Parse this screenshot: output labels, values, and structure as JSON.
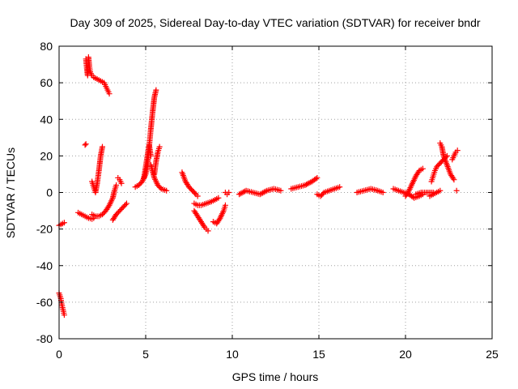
{
  "chart_data": {
    "type": "scatter",
    "title": "Day 309 of 2025, Sidereal Day-to-day VTEC variation (SDTVAR) for receiver bndr",
    "xlabel": "GPS time / hours",
    "ylabel": "SDTVAR / TECUs",
    "xlim": [
      0,
      25
    ],
    "ylim": [
      -80,
      80
    ],
    "x_ticks": [
      0,
      5,
      10,
      15,
      20,
      25
    ],
    "y_ticks": [
      -80,
      -60,
      -40,
      -20,
      0,
      20,
      40,
      60,
      80
    ],
    "grid": true,
    "marker": "+",
    "color": "#ff0000",
    "series": [
      {
        "x": [
          0.0,
          0.1,
          0.2,
          0.3
        ],
        "y": [
          -18.0,
          -17.5,
          -17.0,
          -16.5
        ]
      },
      {
        "x": [
          0.0,
          0.1,
          0.15,
          0.2,
          0.25,
          0.3
        ],
        "y": [
          -55.0,
          -58.0,
          -61.0,
          -63.0,
          -65.0,
          -67.0
        ]
      },
      {
        "x": [
          1.1,
          1.3,
          1.5,
          1.7,
          1.9,
          2.0
        ],
        "y": [
          -11.0,
          -12.0,
          -13.0,
          -14.0,
          -14.5,
          -14.0
        ]
      },
      {
        "x": [
          1.5,
          1.55
        ],
        "y": [
          26.0,
          26.5
        ]
      },
      {
        "x": [
          1.55,
          1.6,
          1.65,
          1.7,
          1.75,
          1.8,
          1.9,
          2.0,
          2.2,
          2.4,
          2.6,
          2.7,
          2.8,
          2.9
        ],
        "y": [
          73.0,
          68.0,
          64.0,
          74.0,
          69.0,
          66.0,
          64.0,
          63.0,
          62.0,
          61.0,
          60.0,
          58.0,
          56.0,
          54.0
        ]
      },
      {
        "x": [
          1.9,
          2.0,
          2.1,
          2.2,
          2.3,
          2.4,
          2.5
        ],
        "y": [
          6.0,
          3.0,
          0.0,
          5.0,
          12.0,
          20.0,
          25.0
        ]
      },
      {
        "x": [
          1.9,
          2.1,
          2.3,
          2.5,
          2.7,
          2.9,
          3.1,
          3.2,
          3.3
        ],
        "y": [
          -12.0,
          -13.0,
          -13.0,
          -12.0,
          -10.0,
          -7.0,
          -3.0,
          1.0,
          4.0
        ]
      },
      {
        "x": [
          3.1,
          3.3,
          3.5,
          3.7,
          3.9
        ],
        "y": [
          -15.0,
          -12.0,
          -10.0,
          -8.0,
          -6.0
        ]
      },
      {
        "x": [
          3.4,
          3.5,
          3.6
        ],
        "y": [
          8.0,
          7.0,
          5.0
        ]
      },
      {
        "x": [
          4.4,
          4.6,
          4.8,
          5.0,
          5.1,
          5.2,
          5.3,
          5.4,
          5.5,
          5.6
        ],
        "y": [
          3.0,
          4.0,
          6.0,
          10.0,
          15.0,
          25.0,
          35.0,
          44.0,
          52.0,
          56.0
        ]
      },
      {
        "x": [
          4.9,
          5.0,
          5.1,
          5.2,
          5.3
        ],
        "y": [
          8.0,
          14.0,
          20.0,
          26.0,
          20.0
        ]
      },
      {
        "x": [
          5.3,
          5.5,
          5.7,
          5.9,
          6.2
        ],
        "y": [
          15.0,
          8.0,
          4.0,
          2.0,
          1.0
        ]
      },
      {
        "x": [
          5.5,
          5.6,
          5.7,
          5.8
        ],
        "y": [
          10.0,
          17.0,
          22.0,
          25.0
        ]
      },
      {
        "x": [
          7.1,
          7.3,
          7.5,
          7.7,
          7.9,
          8.0
        ],
        "y": [
          11.0,
          6.0,
          3.0,
          1.0,
          -1.0,
          -2.0
        ]
      },
      {
        "x": [
          7.8,
          8.0,
          8.2,
          8.5,
          8.8,
          9.0,
          9.2
        ],
        "y": [
          -6.0,
          -7.0,
          -7.0,
          -6.0,
          -5.0,
          -4.0,
          -3.0
        ]
      },
      {
        "x": [
          7.8,
          8.0,
          8.2,
          8.4,
          8.5,
          8.6
        ],
        "y": [
          -10.0,
          -13.0,
          -16.0,
          -19.0,
          -20.0,
          -21.0
        ]
      },
      {
        "x": [
          8.9,
          9.1,
          9.3,
          9.5,
          9.6
        ],
        "y": [
          -16.0,
          -17.0,
          -14.0,
          -10.0,
          -7.0
        ]
      },
      {
        "x": [
          9.6,
          9.7,
          9.8
        ],
        "y": [
          0.0,
          -1.0,
          0.0
        ]
      },
      {
        "x": [
          10.4,
          10.8,
          11.2,
          11.6,
          12.0,
          12.4,
          12.8
        ],
        "y": [
          -1.0,
          1.0,
          0.0,
          -1.0,
          1.0,
          2.0,
          1.0
        ]
      },
      {
        "x": [
          13.4,
          13.8,
          14.2,
          14.6,
          14.9
        ],
        "y": [
          2.0,
          3.0,
          4.0,
          6.0,
          8.0
        ]
      },
      {
        "x": [
          14.9,
          15.1,
          15.3,
          15.6,
          15.9,
          16.2
        ],
        "y": [
          -1.0,
          -2.0,
          0.0,
          1.0,
          2.0,
          3.0
        ]
      },
      {
        "x": [
          17.2,
          17.6,
          18.0,
          18.4,
          18.7
        ],
        "y": [
          0.0,
          1.0,
          2.0,
          1.0,
          0.0
        ]
      },
      {
        "x": [
          19.3,
          19.6,
          19.9,
          20.2,
          20.5,
          20.8,
          21.0
        ],
        "y": [
          2.0,
          1.0,
          0.0,
          -1.0,
          -3.0,
          -2.0,
          -1.0
        ]
      },
      {
        "x": [
          20.0,
          20.2,
          20.4,
          20.6,
          20.8,
          21.0
        ],
        "y": [
          -2.0,
          1.0,
          5.0,
          9.0,
          12.0,
          13.0
        ]
      },
      {
        "x": [
          20.6,
          20.9,
          21.2,
          21.5,
          21.6
        ],
        "y": [
          -1.0,
          0.0,
          0.0,
          0.0,
          0.0
        ]
      },
      {
        "x": [
          21.4,
          21.6,
          21.8,
          22.0
        ],
        "y": [
          -2.0,
          -1.0,
          0.0,
          1.0
        ]
      },
      {
        "x": [
          21.5,
          21.6,
          21.7,
          21.8,
          22.0,
          22.2,
          22.4
        ],
        "y": [
          6.0,
          9.0,
          12.0,
          14.0,
          16.0,
          18.0,
          20.0
        ]
      },
      {
        "x": [
          22.0,
          22.1,
          22.2,
          22.4,
          22.6,
          22.8
        ],
        "y": [
          27.0,
          25.0,
          20.0,
          15.0,
          10.0,
          7.0
        ]
      },
      {
        "x": [
          22.7,
          22.8,
          22.9,
          23.0
        ],
        "y": [
          18.0,
          20.0,
          22.0,
          23.0
        ]
      },
      {
        "x": [
          22.95
        ],
        "y": [
          1.0
        ]
      }
    ]
  }
}
